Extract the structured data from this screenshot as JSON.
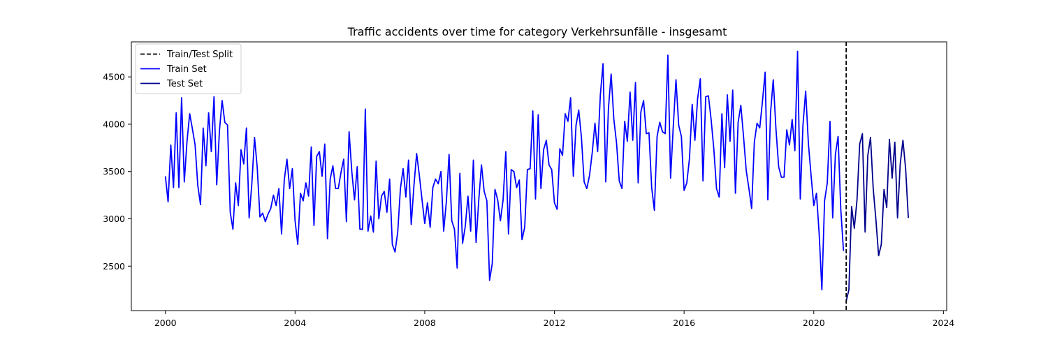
{
  "chart_data": {
    "type": "line",
    "title": "Traffic accidents over time for category Verkehrsunfälle - insgesamt",
    "xlabel": "",
    "ylabel": "",
    "xlim": [
      1998.95,
      2024.1
    ],
    "ylim": [
      2030,
      4870
    ],
    "x_ticks": [
      2000,
      2004,
      2008,
      2012,
      2016,
      2020,
      2024
    ],
    "y_ticks": [
      2500,
      3000,
      3500,
      4000,
      4500
    ],
    "grid": false,
    "legend_placement": "top-left",
    "split_x": 2021.0,
    "series": [
      {
        "name": "Train Set",
        "color": "#0000ff",
        "start_year": 2000,
        "values": [
          3450,
          3180,
          3780,
          3330,
          4120,
          3330,
          4280,
          3390,
          3820,
          4110,
          3950,
          3780,
          3350,
          3150,
          3960,
          3560,
          4120,
          3710,
          4290,
          3360,
          3930,
          4250,
          4020,
          3990,
          3070,
          2890,
          3380,
          3140,
          3730,
          3580,
          3960,
          3010,
          3370,
          3860,
          3540,
          3020,
          3060,
          2970,
          3050,
          3110,
          3250,
          3140,
          3320,
          2840,
          3410,
          3630,
          3320,
          3530,
          2980,
          2730,
          3270,
          3190,
          3380,
          3240,
          3760,
          2930,
          3660,
          3710,
          3450,
          3790,
          2790,
          3420,
          3560,
          3320,
          3320,
          3490,
          3630,
          2970,
          3920,
          3500,
          3200,
          3550,
          2890,
          2890,
          4160,
          2870,
          3030,
          2860,
          3610,
          3000,
          3240,
          3290,
          3070,
          3420,
          2730,
          2650,
          2860,
          3320,
          3530,
          3230,
          3620,
          2940,
          3350,
          3690,
          3460,
          3200,
          2950,
          3170,
          2910,
          3330,
          3420,
          3370,
          3500,
          2870,
          3180,
          3680,
          2980,
          2890,
          2480,
          3480,
          2740,
          2920,
          3240,
          2870,
          3620,
          2750,
          3200,
          3570,
          3290,
          3190,
          2350,
          2530,
          3310,
          3200,
          2980,
          3200,
          3710,
          2840,
          3520,
          3500,
          3330,
          3410,
          2780,
          2910,
          3520,
          3530,
          4140,
          3210,
          4100,
          3320,
          3730,
          3830,
          3570,
          3520,
          3170,
          3100,
          3740,
          3670,
          4110,
          4030,
          4280,
          3450,
          3990,
          4150,
          3860,
          3390,
          3320,
          3460,
          3700,
          4010,
          3710,
          4310,
          4640,
          3390,
          4170,
          4530,
          4050,
          3800,
          3400,
          3320,
          4030,
          3820,
          4340,
          3830,
          4440,
          3380,
          4130,
          4250,
          3900,
          3910,
          3330,
          3090,
          3870,
          4020,
          3920,
          3900,
          4730,
          3430,
          3980,
          4470,
          3990,
          3870,
          3300,
          3380,
          3640,
          4210,
          3830,
          4270,
          4480,
          3400,
          4290,
          4300,
          4050,
          3740,
          3320,
          3230,
          4110,
          3540,
          4310,
          3820,
          4360,
          3270,
          4020,
          4200,
          3870,
          3510,
          3320,
          3110,
          3810,
          4010,
          3960,
          4240,
          4550,
          3200,
          4120,
          4470,
          3950,
          3550,
          3440,
          3440,
          3940,
          3780,
          4050,
          3720,
          4770,
          3210,
          3990,
          4350,
          3800,
          3460,
          3140,
          3270,
          2840,
          2250,
          3190,
          3380,
          4030,
          3010,
          3680,
          3870,
          3100,
          2660
        ]
      },
      {
        "name": "Test Set",
        "color": "#00008b",
        "start_year": 2021,
        "values": [
          2130,
          2250,
          3130,
          2900,
          3200,
          3790,
          3900,
          2860,
          3670,
          3860,
          3320,
          2990,
          2610,
          2730,
          3310,
          3120,
          3840,
          3430,
          3810,
          3010,
          3580,
          3830,
          3530,
          3010
        ]
      }
    ],
    "split_line": {
      "name": "Train/Test Split",
      "color": "#000000",
      "style": "dashed"
    }
  }
}
